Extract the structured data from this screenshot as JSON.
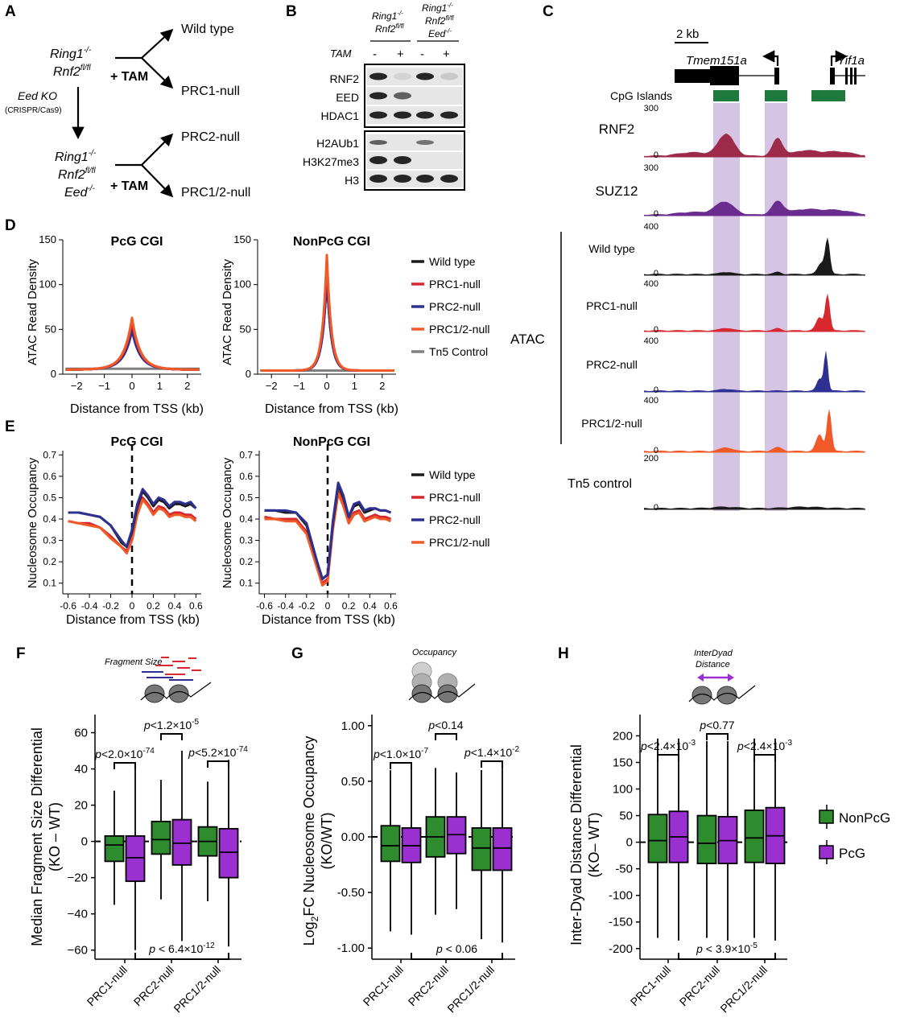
{
  "colors": {
    "wt": "#1a1a1a",
    "prc1": "#d7282f",
    "prc2": "#2e3192",
    "prc12": "#f05a28",
    "tn5": "#808080",
    "nonpcg": "#2e8b2e",
    "pcg": "#9b30d0",
    "highlight": "#d6c4e4",
    "cpg": "#1e7a3c",
    "rnf2_track": "#9e2a4a",
    "suz12_track": "#6a2c8f"
  },
  "panelA": {
    "label": "A",
    "top_genotype_1": "Ring1",
    "top_genotype_2": "Rnf2",
    "wild_type": "Wild type",
    "tam1": "+ TAM",
    "prc1_null": "PRC1-null",
    "eed_ko": "Eed KO",
    "crispr": "(CRISPR/Cas9)",
    "prc2_null": "PRC2-null",
    "bot_genotype_1": "Ring1",
    "bot_genotype_2": "Rnf2",
    "bot_genotype_3": "Eed",
    "tam2": "+ TAM",
    "prc12_null": "PRC1/2-null"
  },
  "panelB": {
    "label": "B",
    "group1_l1": "Ring1",
    "group1_l2": "Rnf2",
    "group2_l1": "Ring1",
    "group2_l2": "Rnf2",
    "group2_l3": "Eed",
    "tam": "TAM",
    "lanes": [
      "-",
      "+",
      "-",
      "+"
    ],
    "blot1_rows": [
      "RNF2",
      "EED",
      "HDAC1"
    ],
    "blot2_rows": [
      "H2AUb1",
      "H3K27me3",
      "H3"
    ]
  },
  "panelC": {
    "label": "C",
    "scale": "2 kb",
    "gene1": "Tmem151a",
    "gene2": "Yif1a",
    "cpg_label": "CpG Islands",
    "tracks": [
      {
        "name": "RNF2",
        "max": "300",
        "min": "0"
      },
      {
        "name": "SUZ12",
        "max": "300",
        "min": "0"
      },
      {
        "name": "Wild type",
        "max": "400",
        "min": "0"
      },
      {
        "name": "PRC1-null",
        "max": "400",
        "min": "0"
      },
      {
        "name": "PRC2-null",
        "max": "400",
        "min": "0"
      },
      {
        "name": "PRC1/2-null",
        "max": "400",
        "min": "0"
      },
      {
        "name": "Tn5 control",
        "max": "200",
        "min": "0"
      }
    ],
    "atac_label": "ATAC"
  },
  "panelD": {
    "label": "D",
    "titles": [
      "PcG CGI",
      "NonPcG CGI"
    ],
    "ylabel": "ATAC Read Density",
    "xlabel": "Distance from TSS (kb)",
    "legend": [
      "Wild type",
      "PRC1-null",
      "PRC2-null",
      "PRC1/2-null",
      "Tn5 Control"
    ]
  },
  "panelE": {
    "label": "E",
    "titles": [
      "PcG CGI",
      "NonPcG CGI"
    ],
    "ylabel": "Nucleosome Occupancy",
    "xlabel": "Distance from TSS (kb)",
    "legend": [
      "Wild type",
      "PRC1-null",
      "PRC2-null",
      "PRC1/2-null"
    ]
  },
  "panelF": {
    "label": "F",
    "icon_text": "Fragment Size",
    "ylabel1": "Median Fragment Size Differential",
    "ylabel2": "(KO – WT)",
    "pvals": [
      "p<2.0×10",
      "-74",
      "p<1.2×10",
      "-5",
      "p<5.2×10",
      "-74"
    ],
    "bottom_p": "p < 6.4×10",
    "bottom_exp": "-12"
  },
  "panelG": {
    "label": "G",
    "icon_text": "Occupancy",
    "ylabel1": "Log",
    "ylabel_sub": "2",
    "ylabel2": "FC Nucleosome Occupancy",
    "ylabel3": "(KO/WT)",
    "pvals": [
      "p<1.0×10",
      "-7",
      "p<0.14",
      "",
      "p<1.4×10",
      "-2"
    ],
    "bottom_p": "p < 0.06",
    "bottom_exp": ""
  },
  "panelH": {
    "label": "H",
    "icon_text1": "InterDyad",
    "icon_text2": "Distance",
    "ylabel1": "Inter-Dyad Distance Differential",
    "ylabel2": "(KO– WT)",
    "pvals": [
      "p<2.4×10",
      "-3",
      "p<0.77",
      "",
      "p<2.4×10",
      "-3"
    ],
    "bottom_p": "p < 3.9×10",
    "bottom_exp": "-5"
  },
  "box_legend": [
    "NonPcG",
    "PcG"
  ],
  "box_categories": [
    "PRC1-null",
    "PRC2-null",
    "PRC1/2-null"
  ],
  "chart_data": [
    {
      "type": "line",
      "panel": "D-left",
      "title": "PcG CGI",
      "xlabel": "Distance from TSS (kb)",
      "ylabel": "ATAC Read Density",
      "xlim": [
        -2.5,
        2.5
      ],
      "ylim": [
        0,
        150
      ],
      "x_ticks": [
        -2,
        -1,
        0,
        1,
        2
      ],
      "y_ticks": [
        0,
        50,
        100,
        150
      ],
      "series": [
        {
          "name": "Wild type",
          "peak": 48
        },
        {
          "name": "PRC1-null",
          "peak": 57
        },
        {
          "name": "PRC2-null",
          "peak": 47
        },
        {
          "name": "PRC1/2-null",
          "peak": 61
        },
        {
          "name": "Tn5 Control",
          "peak": 6
        }
      ]
    },
    {
      "type": "line",
      "panel": "D-right",
      "title": "NonPcG CGI",
      "xlabel": "Distance from TSS (kb)",
      "ylabel": "ATAC Read Density",
      "xlim": [
        -2.5,
        2.5
      ],
      "ylim": [
        0,
        150
      ],
      "x_ticks": [
        -2,
        -1,
        0,
        1,
        2
      ],
      "y_ticks": [
        0,
        50,
        100,
        150
      ],
      "series": [
        {
          "name": "Wild type",
          "peak": 110
        },
        {
          "name": "PRC1-null",
          "peak": 128
        },
        {
          "name": "PRC2-null",
          "peak": 108
        },
        {
          "name": "PRC1/2-null",
          "peak": 133
        },
        {
          "name": "Tn5 Control",
          "peak": 4
        }
      ]
    },
    {
      "type": "line",
      "panel": "E-left",
      "title": "PcG CGI",
      "xlabel": "Distance from TSS (kb)",
      "ylabel": "Nucleosome Occupancy",
      "xlim": [
        -0.65,
        0.65
      ],
      "ylim": [
        0.05,
        0.72
      ],
      "x_ticks": [
        -0.6,
        -0.4,
        -0.2,
        0,
        0.2,
        0.4,
        0.6
      ],
      "y_ticks": [
        0.1,
        0.2,
        0.3,
        0.4,
        0.5,
        0.6,
        0.7
      ],
      "x": [
        -0.6,
        -0.5,
        -0.4,
        -0.3,
        -0.2,
        -0.1,
        -0.05,
        0,
        0.05,
        0.1,
        0.15,
        0.2,
        0.25,
        0.3,
        0.35,
        0.4,
        0.45,
        0.5,
        0.55,
        0.6
      ],
      "series": [
        {
          "name": "Wild type",
          "values": [
            0.43,
            0.43,
            0.42,
            0.41,
            0.37,
            0.29,
            0.27,
            0.34,
            0.46,
            0.53,
            0.5,
            0.46,
            0.49,
            0.48,
            0.45,
            0.47,
            0.47,
            0.46,
            0.47,
            0.45
          ]
        },
        {
          "name": "PRC1-null",
          "values": [
            0.39,
            0.38,
            0.38,
            0.36,
            0.32,
            0.27,
            0.25,
            0.31,
            0.43,
            0.5,
            0.47,
            0.43,
            0.46,
            0.45,
            0.42,
            0.43,
            0.43,
            0.42,
            0.42,
            0.4
          ]
        },
        {
          "name": "PRC2-null",
          "values": [
            0.43,
            0.43,
            0.42,
            0.41,
            0.37,
            0.3,
            0.27,
            0.35,
            0.47,
            0.54,
            0.51,
            0.47,
            0.5,
            0.49,
            0.46,
            0.48,
            0.48,
            0.47,
            0.48,
            0.45
          ]
        },
        {
          "name": "PRC1/2-null",
          "values": [
            0.39,
            0.38,
            0.37,
            0.36,
            0.31,
            0.27,
            0.24,
            0.3,
            0.42,
            0.49,
            0.46,
            0.42,
            0.45,
            0.44,
            0.41,
            0.42,
            0.42,
            0.41,
            0.41,
            0.39
          ]
        }
      ]
    },
    {
      "type": "line",
      "panel": "E-right",
      "title": "NonPcG CGI",
      "xlabel": "Distance from TSS (kb)",
      "ylabel": "Nucleosome Occupancy",
      "xlim": [
        -0.65,
        0.65
      ],
      "ylim": [
        0.05,
        0.72
      ],
      "x_ticks": [
        -0.6,
        -0.4,
        -0.2,
        0,
        0.2,
        0.4,
        0.6
      ],
      "y_ticks": [
        0.1,
        0.2,
        0.3,
        0.4,
        0.5,
        0.6,
        0.7
      ],
      "x": [
        -0.6,
        -0.5,
        -0.4,
        -0.3,
        -0.2,
        -0.1,
        -0.05,
        0,
        0.05,
        0.1,
        0.15,
        0.2,
        0.25,
        0.3,
        0.35,
        0.4,
        0.45,
        0.5,
        0.55,
        0.6
      ],
      "series": [
        {
          "name": "Wild type",
          "values": [
            0.44,
            0.44,
            0.43,
            0.43,
            0.37,
            0.2,
            0.12,
            0.14,
            0.38,
            0.56,
            0.5,
            0.41,
            0.46,
            0.47,
            0.43,
            0.44,
            0.45,
            0.44,
            0.44,
            0.43
          ]
        },
        {
          "name": "PRC1-null",
          "values": [
            0.41,
            0.4,
            0.4,
            0.4,
            0.34,
            0.18,
            0.1,
            0.12,
            0.36,
            0.53,
            0.47,
            0.39,
            0.43,
            0.44,
            0.4,
            0.41,
            0.42,
            0.41,
            0.41,
            0.4
          ]
        },
        {
          "name": "PRC2-null",
          "values": [
            0.44,
            0.44,
            0.44,
            0.43,
            0.38,
            0.2,
            0.12,
            0.14,
            0.39,
            0.57,
            0.51,
            0.41,
            0.47,
            0.48,
            0.44,
            0.45,
            0.45,
            0.44,
            0.44,
            0.43
          ]
        },
        {
          "name": "PRC1/2-null",
          "values": [
            0.4,
            0.4,
            0.39,
            0.39,
            0.33,
            0.17,
            0.09,
            0.11,
            0.35,
            0.52,
            0.46,
            0.38,
            0.42,
            0.43,
            0.39,
            0.4,
            0.41,
            0.4,
            0.4,
            0.39
          ]
        }
      ]
    },
    {
      "type": "box",
      "panel": "F",
      "ylabel": "Median Fragment Size Differential (KO – WT)",
      "ylim": [
        -65,
        70
      ],
      "y_ticks": [
        -60,
        -40,
        -20,
        0,
        20,
        40,
        60
      ],
      "categories": [
        "PRC1-null",
        "PRC2-null",
        "PRC1/2-null"
      ],
      "series": [
        {
          "name": "NonPcG",
          "boxes": [
            {
              "min": -35,
              "q1": -11,
              "median": -2,
              "q3": 3,
              "max": 28
            },
            {
              "min": -32,
              "q1": -7,
              "median": 1,
              "q3": 11,
              "max": 34
            },
            {
              "min": -33,
              "q1": -8,
              "median": 0,
              "q3": 8,
              "max": 33
            }
          ]
        },
        {
          "name": "PcG",
          "boxes": [
            {
              "min": -60,
              "q1": -22,
              "median": -9,
              "q3": 3,
              "max": 42
            },
            {
              "min": -55,
              "q1": -13,
              "median": -1,
              "q3": 12,
              "max": 50
            },
            {
              "min": -58,
              "q1": -20,
              "median": -6,
              "q3": 7,
              "max": 45
            }
          ]
        }
      ]
    },
    {
      "type": "box",
      "panel": "G",
      "ylabel": "Log2FC Nucleosome Occupancy (KO/WT)",
      "ylim": [
        -1.1,
        1.1
      ],
      "y_ticks": [
        -1.0,
        -0.5,
        0.0,
        0.5,
        1.0
      ],
      "categories": [
        "PRC1-null",
        "PRC2-null",
        "PRC1/2-null"
      ],
      "series": [
        {
          "name": "NonPcG",
          "boxes": [
            {
              "min": -0.85,
              "q1": -0.22,
              "median": -0.08,
              "q3": 0.1,
              "max": 0.6
            },
            {
              "min": -0.7,
              "q1": -0.18,
              "median": 0.0,
              "q3": 0.18,
              "max": 0.62
            },
            {
              "min": -0.92,
              "q1": -0.3,
              "median": -0.1,
              "q3": 0.08,
              "max": 0.6
            }
          ]
        },
        {
          "name": "PcG",
          "boxes": [
            {
              "min": -0.88,
              "q1": -0.23,
              "median": -0.08,
              "q3": 0.08,
              "max": 0.62
            },
            {
              "min": -0.65,
              "q1": -0.15,
              "median": 0.02,
              "q3": 0.18,
              "max": 0.58
            },
            {
              "min": -0.95,
              "q1": -0.3,
              "median": -0.1,
              "q3": 0.08,
              "max": 0.63
            }
          ]
        }
      ]
    },
    {
      "type": "box",
      "panel": "H",
      "ylabel": "Inter-Dyad Distance Differential (KO– WT)",
      "ylim": [
        -220,
        240
      ],
      "y_ticks": [
        -200,
        -150,
        -100,
        -50,
        0,
        50,
        100,
        150,
        200
      ],
      "categories": [
        "PRC1-null",
        "PRC2-null",
        "PRC1/2-null"
      ],
      "series": [
        {
          "name": "NonPcG",
          "boxes": [
            {
              "min": -180,
              "q1": -38,
              "median": 3,
              "q3": 52,
              "max": 195
            },
            {
              "min": -180,
              "q1": -40,
              "median": -2,
              "q3": 50,
              "max": 190
            },
            {
              "min": -180,
              "q1": -38,
              "median": 8,
              "q3": 60,
              "max": 195
            }
          ]
        },
        {
          "name": "PcG",
          "boxes": [
            {
              "min": -185,
              "q1": -38,
              "median": 10,
              "q3": 58,
              "max": 195
            },
            {
              "min": -185,
              "q1": -40,
              "median": 3,
              "q3": 48,
              "max": 190
            },
            {
              "min": -185,
              "q1": -40,
              "median": 12,
              "q3": 65,
              "max": 195
            }
          ]
        }
      ]
    }
  ]
}
